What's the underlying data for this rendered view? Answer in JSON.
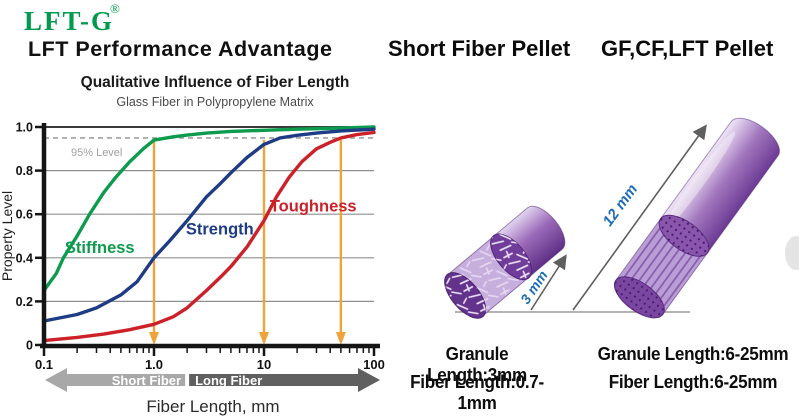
{
  "header": {
    "logo_text": "LFT-G",
    "registered_mark": "®",
    "tagline": "LFT Performance Advantage",
    "left_product_heading": "Short Fiber Pellet",
    "right_product_heading": "GF,CF,LFT Pellet"
  },
  "chart_data": {
    "type": "line",
    "title": "Qualitative Influence of Fiber Length",
    "subtitle": "Glass Fiber in Polypropylene Matrix",
    "xlabel": "Fiber Length, mm",
    "ylabel": "Property Level",
    "xscale": "log",
    "xlim": [
      0.1,
      100
    ],
    "ylim": [
      0,
      1
    ],
    "xticks": [
      0.1,
      1,
      10,
      100
    ],
    "xtick_labels": [
      "0.1",
      "1.0",
      "10",
      "100"
    ],
    "yticks": [
      0,
      0.2,
      0.4,
      0.6,
      0.8,
      1
    ],
    "ytick_labels": [
      "0",
      "0.2",
      "0.4",
      "0.6",
      "0.8",
      "1.0"
    ],
    "grid": true,
    "grid_color": "#8f8f8f",
    "reference_line": {
      "y": 0.95,
      "label": "95% Level",
      "color": "#a0a0a0"
    },
    "marker_arrows": {
      "color": "#efa33b",
      "x_values": [
        1,
        10,
        50
      ]
    },
    "series": [
      {
        "name": "Stiffness",
        "color": "#0d9b4d",
        "label_x": 0.155,
        "label_y": 0.445,
        "points": [
          [
            0.1,
            0.25
          ],
          [
            0.13,
            0.33
          ],
          [
            0.15,
            0.4
          ],
          [
            0.2,
            0.5
          ],
          [
            0.26,
            0.6
          ],
          [
            0.35,
            0.7
          ],
          [
            0.45,
            0.77
          ],
          [
            0.6,
            0.84
          ],
          [
            0.8,
            0.9
          ],
          [
            1,
            0.94
          ],
          [
            1.5,
            0.955
          ],
          [
            2,
            0.963
          ],
          [
            3,
            0.972
          ],
          [
            5,
            0.98
          ],
          [
            10,
            0.985
          ],
          [
            20,
            0.99
          ],
          [
            50,
            0.995
          ],
          [
            100,
            1.0
          ]
        ]
      },
      {
        "name": "Strength",
        "color": "#1e3c85",
        "label_x": 1.95,
        "label_y": 0.53,
        "points": [
          [
            0.1,
            0.11
          ],
          [
            0.2,
            0.14
          ],
          [
            0.3,
            0.17
          ],
          [
            0.5,
            0.23
          ],
          [
            0.7,
            0.29
          ],
          [
            1,
            0.4
          ],
          [
            1.4,
            0.48
          ],
          [
            2,
            0.57
          ],
          [
            3,
            0.68
          ],
          [
            4,
            0.74
          ],
          [
            5,
            0.79
          ],
          [
            7,
            0.86
          ],
          [
            10,
            0.92
          ],
          [
            14,
            0.95
          ],
          [
            20,
            0.962
          ],
          [
            30,
            0.972
          ],
          [
            50,
            0.982
          ],
          [
            100,
            0.99
          ]
        ]
      },
      {
        "name": "Toughness",
        "color": "#cd2129",
        "label_x": 11.3,
        "label_y": 0.635,
        "points": [
          [
            0.1,
            0.02
          ],
          [
            0.2,
            0.035
          ],
          [
            0.35,
            0.05
          ],
          [
            0.6,
            0.07
          ],
          [
            1,
            0.095
          ],
          [
            1.5,
            0.13
          ],
          [
            2,
            0.17
          ],
          [
            3,
            0.25
          ],
          [
            4,
            0.31
          ],
          [
            5,
            0.36
          ],
          [
            7,
            0.45
          ],
          [
            10,
            0.57
          ],
          [
            13,
            0.68
          ],
          [
            17,
            0.77
          ],
          [
            22,
            0.84
          ],
          [
            30,
            0.9
          ],
          [
            40,
            0.93
          ],
          [
            50,
            0.95
          ],
          [
            70,
            0.965
          ],
          [
            100,
            0.975
          ]
        ]
      }
    ],
    "range_bar": {
      "left_label": "Short Fiber",
      "right_label": "Long Fiber",
      "left_color": "#a8a8a8",
      "right_color": "#606060",
      "split_x": 2.0
    }
  },
  "pellets": {
    "left": {
      "dimension_label": "3 mm",
      "granule_length": "Granule Length:3mm",
      "fiber_length": "Fiber Length:0.7-1mm"
    },
    "right": {
      "dimension_label": "12 mm",
      "granule_length": "Granule Length:6-25mm",
      "fiber_length": "Fiber Length:6-25mm"
    },
    "dimension_label_color": "#1e6db5",
    "body_purple": "#9469b8",
    "dark_purple": "#5e2f85",
    "light_purple": "#d9c6ea"
  },
  "colors": {
    "logo_green": "#009a4e",
    "background": "#ffffff",
    "axis": "#151515"
  }
}
